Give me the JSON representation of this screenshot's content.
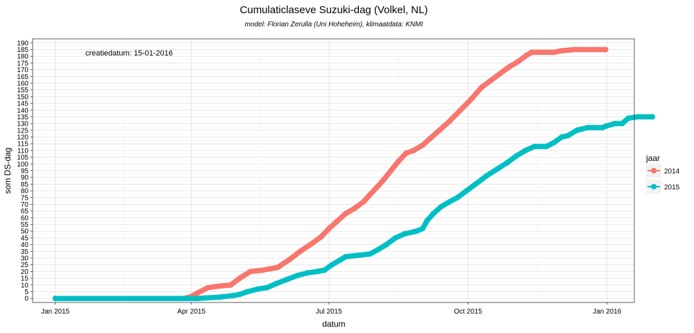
{
  "chart_data": {
    "type": "line",
    "title": "Cumulaticlaseve Suzuki-dag (Volkel, NL)",
    "subtitle": "model: Florian Zerulla (Uni Hoheheim), klimaatdata: KNMI",
    "xlabel": "datum",
    "ylabel": "som DS-dag",
    "x_range": [
      "2014-12-17",
      "2016-01-19"
    ],
    "ylim": [
      -3,
      193
    ],
    "x_ticks": [
      {
        "date": "2015-01-01",
        "label": "Jan 2015"
      },
      {
        "date": "2015-04-01",
        "label": "Apr 2015"
      },
      {
        "date": "2015-07-01",
        "label": "Jul 2015"
      },
      {
        "date": "2015-10-01",
        "label": "Oct 2015"
      },
      {
        "date": "2016-01-01",
        "label": "Jan 2016"
      }
    ],
    "y_ticks": [
      0,
      5,
      10,
      15,
      20,
      25,
      30,
      35,
      40,
      45,
      50,
      55,
      60,
      65,
      70,
      75,
      80,
      85,
      90,
      95,
      100,
      105,
      110,
      115,
      120,
      125,
      130,
      135,
      140,
      145,
      150,
      155,
      160,
      165,
      170,
      175,
      180,
      185,
      190
    ],
    "grid": true,
    "legend": {
      "title": "jaar",
      "position": "right"
    },
    "annotation": "creatiedatum: 15-01-2016",
    "series": [
      {
        "name": "2014",
        "color": "#F8766D",
        "points": [
          [
            "2015-01-01",
            0
          ],
          [
            "2015-03-27",
            0
          ],
          [
            "2015-03-31",
            1
          ],
          [
            "2015-04-05",
            4
          ],
          [
            "2015-04-12",
            8
          ],
          [
            "2015-04-18",
            9
          ],
          [
            "2015-04-27",
            10
          ],
          [
            "2015-05-03",
            15
          ],
          [
            "2015-05-10",
            20
          ],
          [
            "2015-05-18",
            21
          ],
          [
            "2015-05-28",
            23
          ],
          [
            "2015-06-05",
            29
          ],
          [
            "2015-06-12",
            35
          ],
          [
            "2015-06-20",
            41
          ],
          [
            "2015-06-26",
            46
          ],
          [
            "2015-07-01",
            52
          ],
          [
            "2015-07-06",
            57
          ],
          [
            "2015-07-12",
            63
          ],
          [
            "2015-07-18",
            67
          ],
          [
            "2015-07-24",
            72
          ],
          [
            "2015-07-28",
            77
          ],
          [
            "2015-08-02",
            83
          ],
          [
            "2015-08-06",
            88
          ],
          [
            "2015-08-11",
            95
          ],
          [
            "2015-08-16",
            102
          ],
          [
            "2015-08-21",
            108
          ],
          [
            "2015-08-26",
            110
          ],
          [
            "2015-09-01",
            114
          ],
          [
            "2015-09-06",
            119
          ],
          [
            "2015-09-12",
            125
          ],
          [
            "2015-09-19",
            132
          ],
          [
            "2015-09-26",
            140
          ],
          [
            "2015-10-03",
            148
          ],
          [
            "2015-10-10",
            157
          ],
          [
            "2015-10-16",
            162
          ],
          [
            "2015-10-22",
            167
          ],
          [
            "2015-10-28",
            172
          ],
          [
            "2015-11-03",
            176
          ],
          [
            "2015-11-09",
            181
          ],
          [
            "2015-11-12",
            183
          ],
          [
            "2015-11-27",
            183
          ],
          [
            "2015-12-01",
            184
          ],
          [
            "2015-12-10",
            185
          ],
          [
            "2015-12-31",
            185
          ]
        ]
      },
      {
        "name": "2015",
        "color": "#00BFC4",
        "points": [
          [
            "2015-01-01",
            0
          ],
          [
            "2015-04-05",
            0
          ],
          [
            "2015-04-20",
            1
          ],
          [
            "2015-04-28",
            2
          ],
          [
            "2015-05-03",
            3
          ],
          [
            "2015-05-08",
            5
          ],
          [
            "2015-05-15",
            7
          ],
          [
            "2015-05-21",
            8
          ],
          [
            "2015-05-27",
            11
          ],
          [
            "2015-06-03",
            14
          ],
          [
            "2015-06-10",
            17
          ],
          [
            "2015-06-17",
            19
          ],
          [
            "2015-06-23",
            20
          ],
          [
            "2015-06-28",
            21
          ],
          [
            "2015-07-03",
            25
          ],
          [
            "2015-07-09",
            29
          ],
          [
            "2015-07-12",
            31
          ],
          [
            "2015-07-20",
            32
          ],
          [
            "2015-07-28",
            33
          ],
          [
            "2015-08-02",
            36
          ],
          [
            "2015-08-08",
            40
          ],
          [
            "2015-08-14",
            45
          ],
          [
            "2015-08-20",
            48
          ],
          [
            "2015-08-28",
            50
          ],
          [
            "2015-09-01",
            52
          ],
          [
            "2015-09-04",
            58
          ],
          [
            "2015-09-08",
            63
          ],
          [
            "2015-09-13",
            68
          ],
          [
            "2015-09-19",
            72
          ],
          [
            "2015-09-24",
            75
          ],
          [
            "2015-09-30",
            80
          ],
          [
            "2015-10-06",
            85
          ],
          [
            "2015-10-13",
            91
          ],
          [
            "2015-10-20",
            96
          ],
          [
            "2015-10-27",
            101
          ],
          [
            "2015-11-02",
            106
          ],
          [
            "2015-11-08",
            110
          ],
          [
            "2015-11-14",
            113
          ],
          [
            "2015-11-22",
            113
          ],
          [
            "2015-11-27",
            116
          ],
          [
            "2015-12-02",
            120
          ],
          [
            "2015-12-06",
            121
          ],
          [
            "2015-12-12",
            125
          ],
          [
            "2015-12-19",
            127
          ],
          [
            "2015-12-29",
            127
          ],
          [
            "2015-12-31",
            128
          ],
          [
            "2016-01-06",
            130
          ],
          [
            "2016-01-11",
            130
          ],
          [
            "2016-01-15",
            134
          ],
          [
            "2016-01-21",
            135
          ],
          [
            "2016-01-31",
            135
          ]
        ]
      }
    ]
  }
}
